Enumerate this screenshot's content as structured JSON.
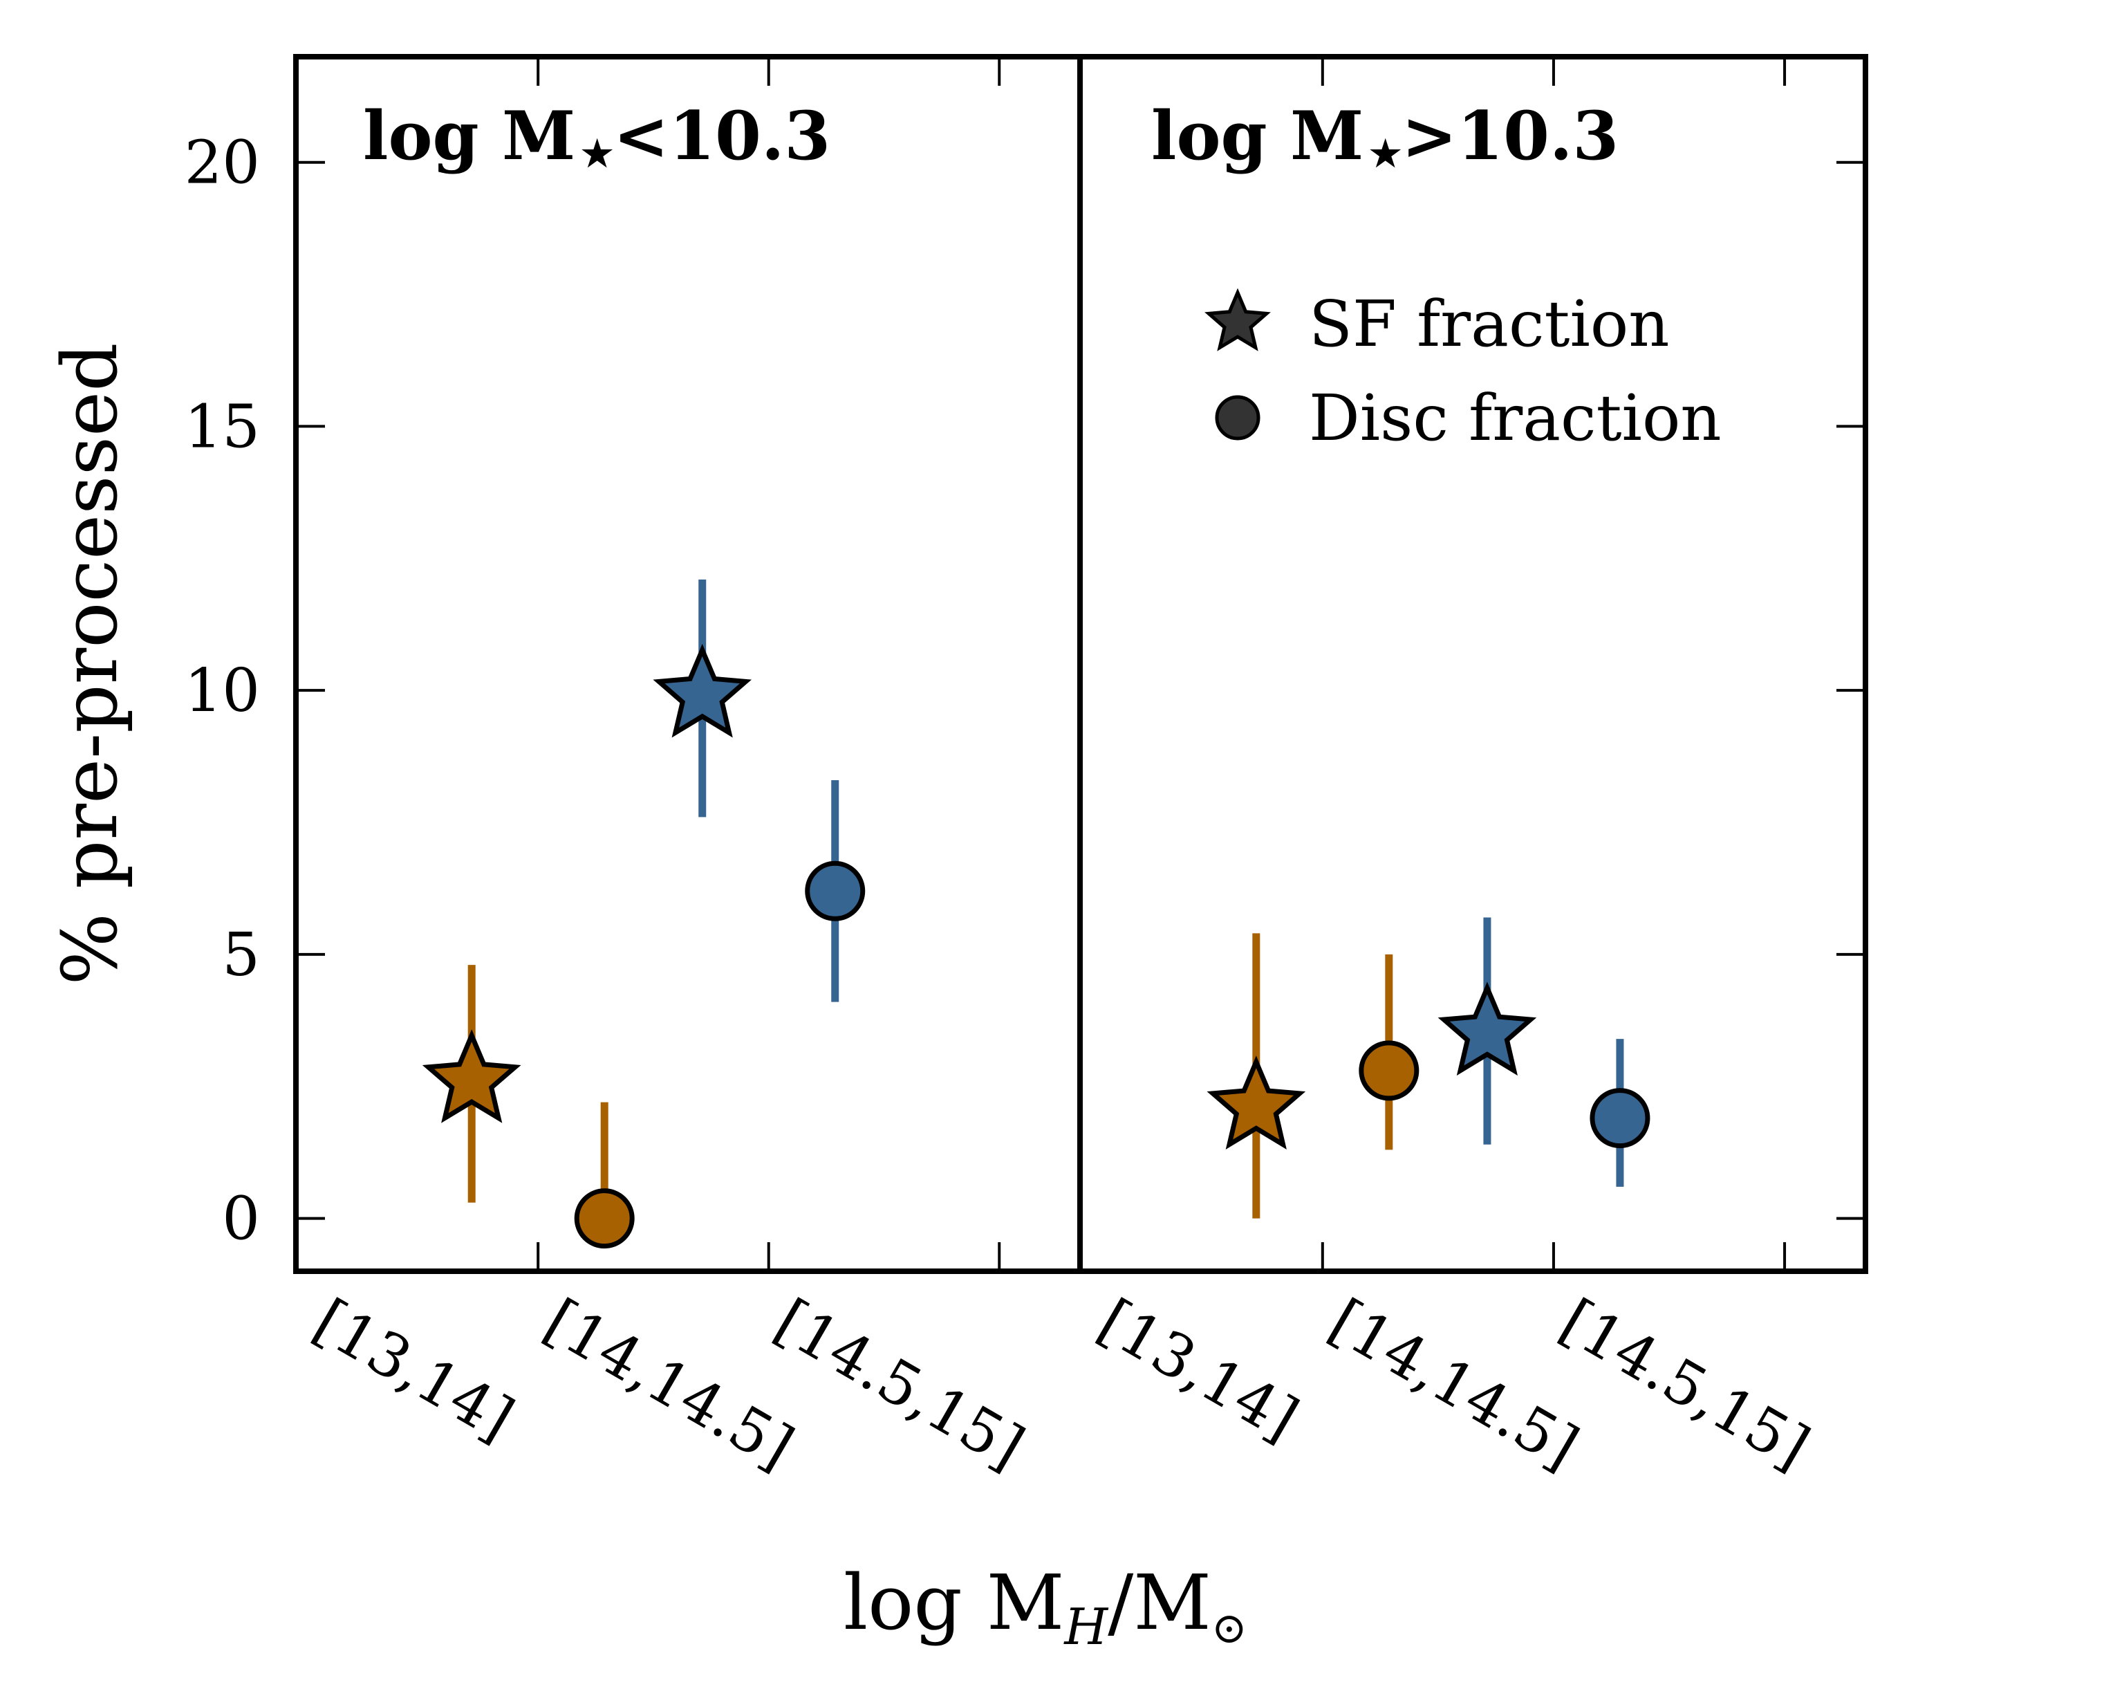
{
  "chart_data": {
    "type": "scatter",
    "shared_ylabel": "% pre-processed",
    "shared_xlabel": "log M",
    "xlabel_sub": "H",
    "xlabel_tail": "/M",
    "ylim": [
      -1,
      22
    ],
    "yticks": [
      0,
      5,
      10,
      15,
      20
    ],
    "categories": [
      "[13,14]",
      "[14,14.5]",
      "[14.5,15]"
    ],
    "colors": {
      "orange": "#a86100",
      "blue": "#366591"
    },
    "legend": {
      "placement": "upper-right",
      "entries": [
        {
          "label": "SF fraction",
          "marker": "star"
        },
        {
          "label": "Disc fraction",
          "marker": "circle"
        }
      ]
    },
    "panels": [
      {
        "title_pre": "log M",
        "title_post": "<10.3",
        "series": [
          {
            "marker": "star",
            "color": "orange",
            "x": -0.15,
            "y": 2.6,
            "err": [
              0.3,
              4.8
            ]
          },
          {
            "marker": "circle",
            "color": "orange",
            "x": 0.15,
            "y": 0.0,
            "err": [
              0.0,
              2.2
            ]
          },
          {
            "marker": "star",
            "color": "blue",
            "x": 0.85,
            "y": 9.9,
            "err": [
              7.6,
              12.1
            ]
          },
          {
            "marker": "circle",
            "color": "blue",
            "x": 1.15,
            "y": 6.2,
            "err": [
              4.1,
              8.3
            ]
          }
        ]
      },
      {
        "title_pre": "log M",
        "title_post": ">10.3",
        "series": [
          {
            "marker": "star",
            "color": "orange",
            "x": -0.15,
            "y": 2.1,
            "err": [
              0.0,
              5.4
            ]
          },
          {
            "marker": "circle",
            "color": "orange",
            "x": 0.15,
            "y": 2.8,
            "err": [
              1.3,
              5.0
            ]
          },
          {
            "marker": "star",
            "color": "blue",
            "x": 0.85,
            "y": 3.5,
            "err": [
              1.4,
              5.7
            ]
          },
          {
            "marker": "circle",
            "color": "blue",
            "x": 1.15,
            "y": 1.9,
            "err": [
              0.6,
              3.4
            ]
          }
        ]
      }
    ]
  }
}
